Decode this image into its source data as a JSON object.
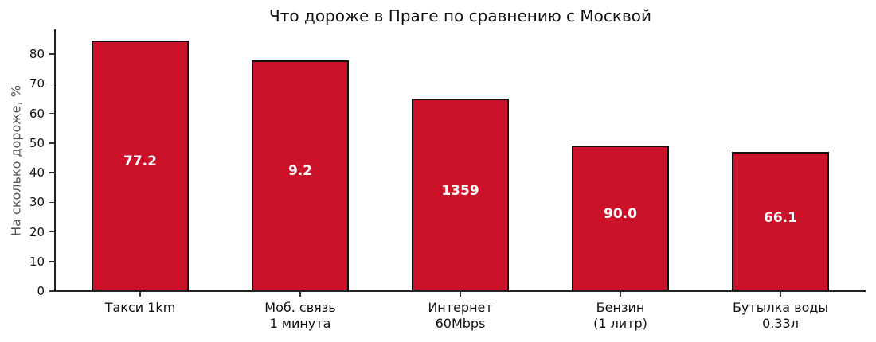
{
  "chart_data": {
    "type": "bar",
    "title": "Что дороже в Праге по сравнению с Москвой",
    "xlabel": "",
    "ylabel": "На сколько дороже, %",
    "ylim": [
      0,
      88
    ],
    "yticks": [
      0,
      10,
      20,
      30,
      40,
      50,
      60,
      70,
      80
    ],
    "grid": false,
    "bar_color": "#cc1228",
    "categories": [
      "Такси 1km",
      "Моб. связь\n1 минута",
      "Интернет\n60Mbps",
      "Бензин\n(1 литр)",
      "Бутылка воды\n0.33л"
    ],
    "category_lines": [
      [
        "Такси 1km"
      ],
      [
        "Моб. связь",
        "1 минута"
      ],
      [
        "Интернет",
        "60Mbps"
      ],
      [
        "Бензин",
        "(1 литр)"
      ],
      [
        "Бутылка воды",
        "0.33л"
      ]
    ],
    "values": [
      84.6,
      77.9,
      65.0,
      49.2,
      47.0
    ],
    "bar_annotations": [
      "77.2",
      "9.2",
      "1359",
      "90.0",
      "66.1"
    ]
  }
}
